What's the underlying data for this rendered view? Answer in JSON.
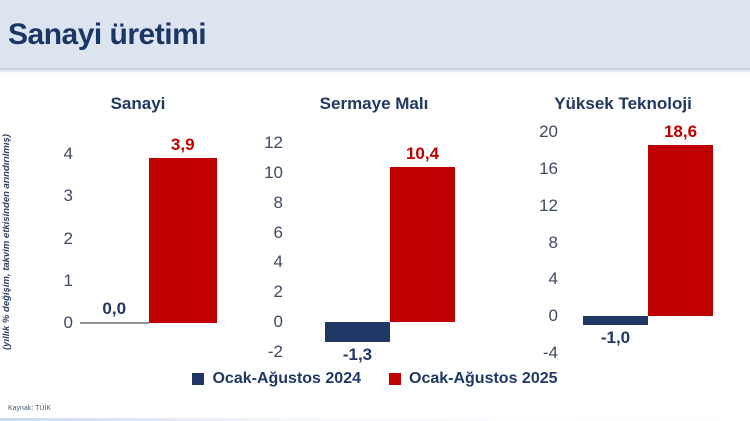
{
  "header": {
    "title": "Sanayi üretimi"
  },
  "axis_note": "(yıllık % değişim, takvim etkisinden arındırılmış)",
  "source": "Kaynak: TÜİK",
  "colors": {
    "header_bg": "#dce4f0",
    "title_navy": "#1b3564",
    "navy": "#1f3864",
    "red": "#c00000",
    "tick_text": "#3f4a63",
    "zero_line": "#8e959f"
  },
  "legend": [
    {
      "label": "Ocak-Ağustos 2024",
      "color": "#1f3864"
    },
    {
      "label": "Ocak-Ağustos 2025",
      "color": "#c00000"
    }
  ],
  "chart_data": [
    {
      "type": "bar",
      "title": "Sanayi",
      "categories": [
        "Ocak-Ağustos 2024",
        "Ocak-Ağustos 2025"
      ],
      "values": [
        0.0,
        3.9
      ],
      "value_labels": [
        "0,0",
        "3,9"
      ],
      "ylabel": "(yıllık % değişim, takvim etkisinden arındırılmış)",
      "ylim": [
        0,
        4
      ],
      "yticks": [
        0,
        1,
        2,
        3,
        4
      ],
      "grid": false,
      "legend_position": "bottom"
    },
    {
      "type": "bar",
      "title": "Sermaye Malı",
      "categories": [
        "Ocak-Ağustos 2024",
        "Ocak-Ağustos 2025"
      ],
      "values": [
        -1.3,
        10.4
      ],
      "value_labels": [
        "-1,3",
        "10,4"
      ],
      "ylabel": "(yıllık % değişim, takvim etkisinden arındırılmış)",
      "ylim": [
        -2,
        12
      ],
      "yticks": [
        -2,
        0,
        2,
        4,
        6,
        8,
        10,
        12
      ],
      "grid": false,
      "legend_position": "bottom"
    },
    {
      "type": "bar",
      "title": "Yüksek Teknoloji",
      "categories": [
        "Ocak-Ağustos 2024",
        "Ocak-Ağustos 2025"
      ],
      "values": [
        -1.0,
        18.6
      ],
      "value_labels": [
        "-1,0",
        "18,6"
      ],
      "ylabel": "(yıllık % değişim, takvim etkisinden arındırılmış)",
      "ylim": [
        -4,
        20
      ],
      "yticks": [
        -4,
        0,
        4,
        8,
        12,
        16,
        20
      ],
      "grid": false,
      "legend_position": "bottom"
    }
  ]
}
